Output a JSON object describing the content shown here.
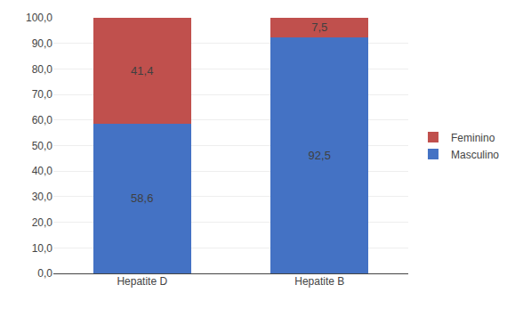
{
  "chart_data": {
    "type": "bar",
    "stacked": true,
    "categories": [
      "Hepatite D",
      "Hepatite B"
    ],
    "series": [
      {
        "name": "Masculino",
        "color": "#4472C4",
        "values": [
          58.6,
          92.5
        ],
        "value_labels": [
          "58,6",
          "92,5"
        ]
      },
      {
        "name": "Feminino",
        "color": "#C0504D",
        "values": [
          41.4,
          7.5
        ],
        "value_labels": [
          "41,4",
          "7,5"
        ]
      }
    ],
    "ylim": [
      0,
      100
    ],
    "yticks": [
      {
        "value": 0,
        "label": "0,0"
      },
      {
        "value": 10,
        "label": "10,0"
      },
      {
        "value": 20,
        "label": "20,0"
      },
      {
        "value": 30,
        "label": "30,0"
      },
      {
        "value": 40,
        "label": "40,0"
      },
      {
        "value": 50,
        "label": "50,0"
      },
      {
        "value": 60,
        "label": "60,0"
      },
      {
        "value": 70,
        "label": "70,0"
      },
      {
        "value": 80,
        "label": "80,0"
      },
      {
        "value": 90,
        "label": "90,0"
      },
      {
        "value": 100,
        "label": "100,0"
      }
    ],
    "grid": true,
    "legend": "right",
    "data_labels": true
  }
}
